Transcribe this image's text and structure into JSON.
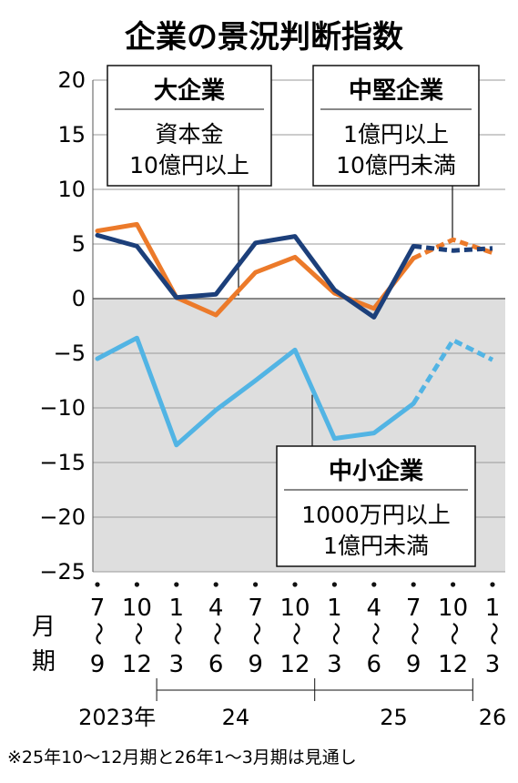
{
  "title": "企業の景況判断指数",
  "footnote": "※25年10〜12月期と26年1〜3月期は見通し",
  "axis_side_label": [
    "月",
    "期"
  ],
  "quarters": [
    {
      "start": "7",
      "sep": "〜",
      "end": "9"
    },
    {
      "start": "10",
      "sep": "〜",
      "end": "12"
    },
    {
      "start": "1",
      "sep": "〜",
      "end": "3"
    },
    {
      "start": "4",
      "sep": "〜",
      "end": "6"
    },
    {
      "start": "7",
      "sep": "〜",
      "end": "9"
    },
    {
      "start": "10",
      "sep": "〜",
      "end": "12"
    },
    {
      "start": "1",
      "sep": "〜",
      "end": "3"
    },
    {
      "start": "4",
      "sep": "〜",
      "end": "6"
    },
    {
      "start": "7",
      "sep": "〜",
      "end": "9"
    },
    {
      "start": "10",
      "sep": "〜",
      "end": "12"
    },
    {
      "start": "1",
      "sep": "〜",
      "end": "3"
    }
  ],
  "years": [
    {
      "label": "2023年",
      "from": 0,
      "to": 1
    },
    {
      "label": "24",
      "from": 2,
      "to": 5
    },
    {
      "label": "25",
      "from": 6,
      "to": 9
    },
    {
      "label": "26",
      "from": 10,
      "to": 10
    }
  ],
  "legend_boxes": {
    "large": {
      "head": "大企業",
      "lines": [
        "資本金",
        "10億円以上"
      ]
    },
    "mid": {
      "head": "中堅企業",
      "lines": [
        "1億円以上",
        "10億円未満"
      ]
    },
    "small": {
      "head": "中小企業",
      "lines": [
        "1000万円以上",
        "1億円未満"
      ]
    }
  },
  "chart_data": {
    "type": "line",
    "title": "企業の景況判断指数",
    "x": [
      "2023年7〜9",
      "10〜12",
      "24年1〜3",
      "4〜6",
      "7〜9",
      "10〜12",
      "25年1〜3",
      "4〜6",
      "7〜9",
      "10〜12",
      "26年1〜3"
    ],
    "ylim": [
      -25,
      20
    ],
    "yticks": [
      20,
      15,
      10,
      5,
      0,
      -5,
      -10,
      -15,
      -20,
      -25
    ],
    "forecast_from_index": 8,
    "series": [
      {
        "name": "大企業",
        "color": "#1c3f7a",
        "values": [
          5.8,
          4.8,
          0.1,
          0.4,
          5.1,
          5.7,
          0.8,
          -1.7,
          4.8,
          4.4,
          4.6
        ]
      },
      {
        "name": "中堅企業",
        "color": "#ec7a2a",
        "values": [
          6.2,
          6.8,
          0.1,
          -1.5,
          2.4,
          3.8,
          0.5,
          -0.9,
          3.7,
          5.4,
          4.2
        ]
      },
      {
        "name": "中小企業",
        "color": "#52b4e4",
        "values": [
          -5.5,
          -3.6,
          -13.4,
          -10.2,
          -7.5,
          -4.7,
          -12.8,
          -12.3,
          -9.6,
          -3.8,
          -5.6
        ]
      }
    ],
    "grid": true,
    "negative_region_shaded": "#dedede"
  }
}
